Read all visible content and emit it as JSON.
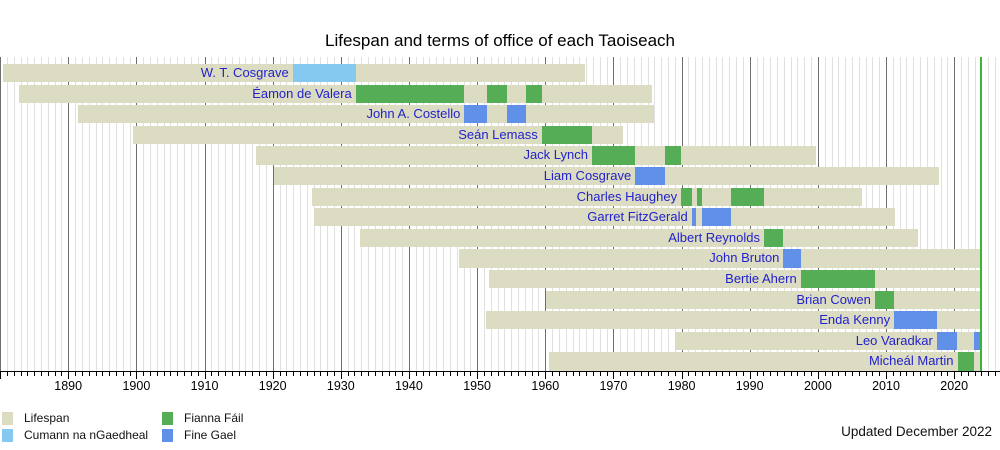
{
  "title": "Lifespan and terms of office of each Taoiseach",
  "updated_note": "Updated December 2022",
  "colors": {
    "lifespan": "#dcdcc2",
    "cumann_na_ngaedheal": "#85c9f0",
    "fianna_fail": "#55ad55",
    "fine_gael": "#6190e8",
    "now_line": "#3cb43c",
    "name_label": "#2222cc",
    "grid_minor": "#e0e0e0",
    "grid_major": "#6e6e6e",
    "axis": "#000000"
  },
  "legend": {
    "items": [
      {
        "label": "Lifespan",
        "color_key": "lifespan"
      },
      {
        "label": "Cumann na nGaedheal",
        "color_key": "cumann_na_ngaedheal"
      },
      {
        "label": "Fianna Fáil",
        "color_key": "fianna_fail"
      },
      {
        "label": "Fine Gael",
        "color_key": "fine_gael"
      }
    ]
  },
  "axis": {
    "decade_tick_labels": [
      "1890",
      "1900",
      "1910",
      "1920",
      "1930",
      "1940",
      "1950",
      "1960",
      "1970",
      "1980",
      "1990",
      "2000",
      "2010",
      "2020"
    ],
    "minor_tick_interval_years": 1,
    "major_tick_interval_years": 10
  },
  "chart_data": {
    "type": "timeline-gantt",
    "title": "Lifespan and terms of office of each Taoiseach",
    "x_domain": [
      1880,
      2026.8
    ],
    "now_marker_year": 2024.0,
    "people": [
      {
        "name": "W. T. Cosgrave",
        "party": "cumann_na_ngaedheal",
        "born": 1880.43,
        "died": 1965.88,
        "terms": [
          [
            1922.94,
            1932.19
          ]
        ]
      },
      {
        "name": "Éamon de Valera",
        "party": "fianna_fail",
        "born": 1882.79,
        "died": 1975.66,
        "terms": [
          [
            1932.19,
            1948.13
          ],
          [
            1951.45,
            1954.42
          ],
          [
            1957.22,
            1959.48
          ]
        ]
      },
      {
        "name": "John A. Costello",
        "party": "fine_gael",
        "born": 1891.47,
        "died": 1976.01,
        "terms": [
          [
            1948.13,
            1951.45
          ],
          [
            1954.42,
            1957.22
          ]
        ]
      },
      {
        "name": "Seán Lemass",
        "party": "fianna_fail",
        "born": 1899.54,
        "died": 1971.36,
        "terms": [
          [
            1959.48,
            1966.86
          ]
        ]
      },
      {
        "name": "Jack Lynch",
        "party": "fianna_fail",
        "born": 1917.62,
        "died": 1999.8,
        "terms": [
          [
            1966.86,
            1973.2
          ],
          [
            1977.51,
            1979.94
          ]
        ]
      },
      {
        "name": "Liam Cosgrave",
        "party": "fine_gael",
        "born": 1920.26,
        "died": 2017.82,
        "terms": [
          [
            1973.2,
            1977.51
          ]
        ]
      },
      {
        "name": "Charles Haughey",
        "party": "fianna_fail",
        "born": 1925.71,
        "died": 2006.44,
        "terms": [
          [
            1979.94,
            1981.49
          ],
          [
            1982.19,
            1982.95
          ],
          [
            1987.19,
            1992.1
          ]
        ]
      },
      {
        "name": "Garret FitzGerald",
        "party": "fine_gael",
        "born": 1926.1,
        "died": 2011.37,
        "terms": [
          [
            1981.49,
            1982.19
          ],
          [
            1982.95,
            1987.19
          ]
        ]
      },
      {
        "name": "Albert Reynolds",
        "party": "fianna_fail",
        "born": 1932.84,
        "died": 2014.63,
        "terms": [
          [
            1992.1,
            1994.95
          ]
        ]
      },
      {
        "name": "John Bruton",
        "party": "fine_gael",
        "born": 1947.37,
        "died": null,
        "terms": [
          [
            1994.95,
            1997.49
          ]
        ]
      },
      {
        "name": "Bertie Ahern",
        "party": "fianna_fail",
        "born": 1951.72,
        "died": null,
        "terms": [
          [
            1997.49,
            2008.36
          ]
        ]
      },
      {
        "name": "Brian Cowen",
        "party": "fianna_fail",
        "born": 1960.03,
        "died": null,
        "terms": [
          [
            2008.36,
            2011.19
          ]
        ]
      },
      {
        "name": "Enda Kenny",
        "party": "fine_gael",
        "born": 1951.3,
        "died": null,
        "terms": [
          [
            2011.19,
            2017.45
          ]
        ]
      },
      {
        "name": "Leo Varadkar",
        "party": "fine_gael",
        "born": 1979.05,
        "died": null,
        "terms": [
          [
            2017.45,
            2020.49
          ],
          [
            2022.96,
            null
          ]
        ]
      },
      {
        "name": "Micheál Martin",
        "party": "fianna_fail",
        "born": 1960.61,
        "died": null,
        "terms": [
          [
            2020.49,
            2022.96
          ]
        ]
      }
    ]
  }
}
